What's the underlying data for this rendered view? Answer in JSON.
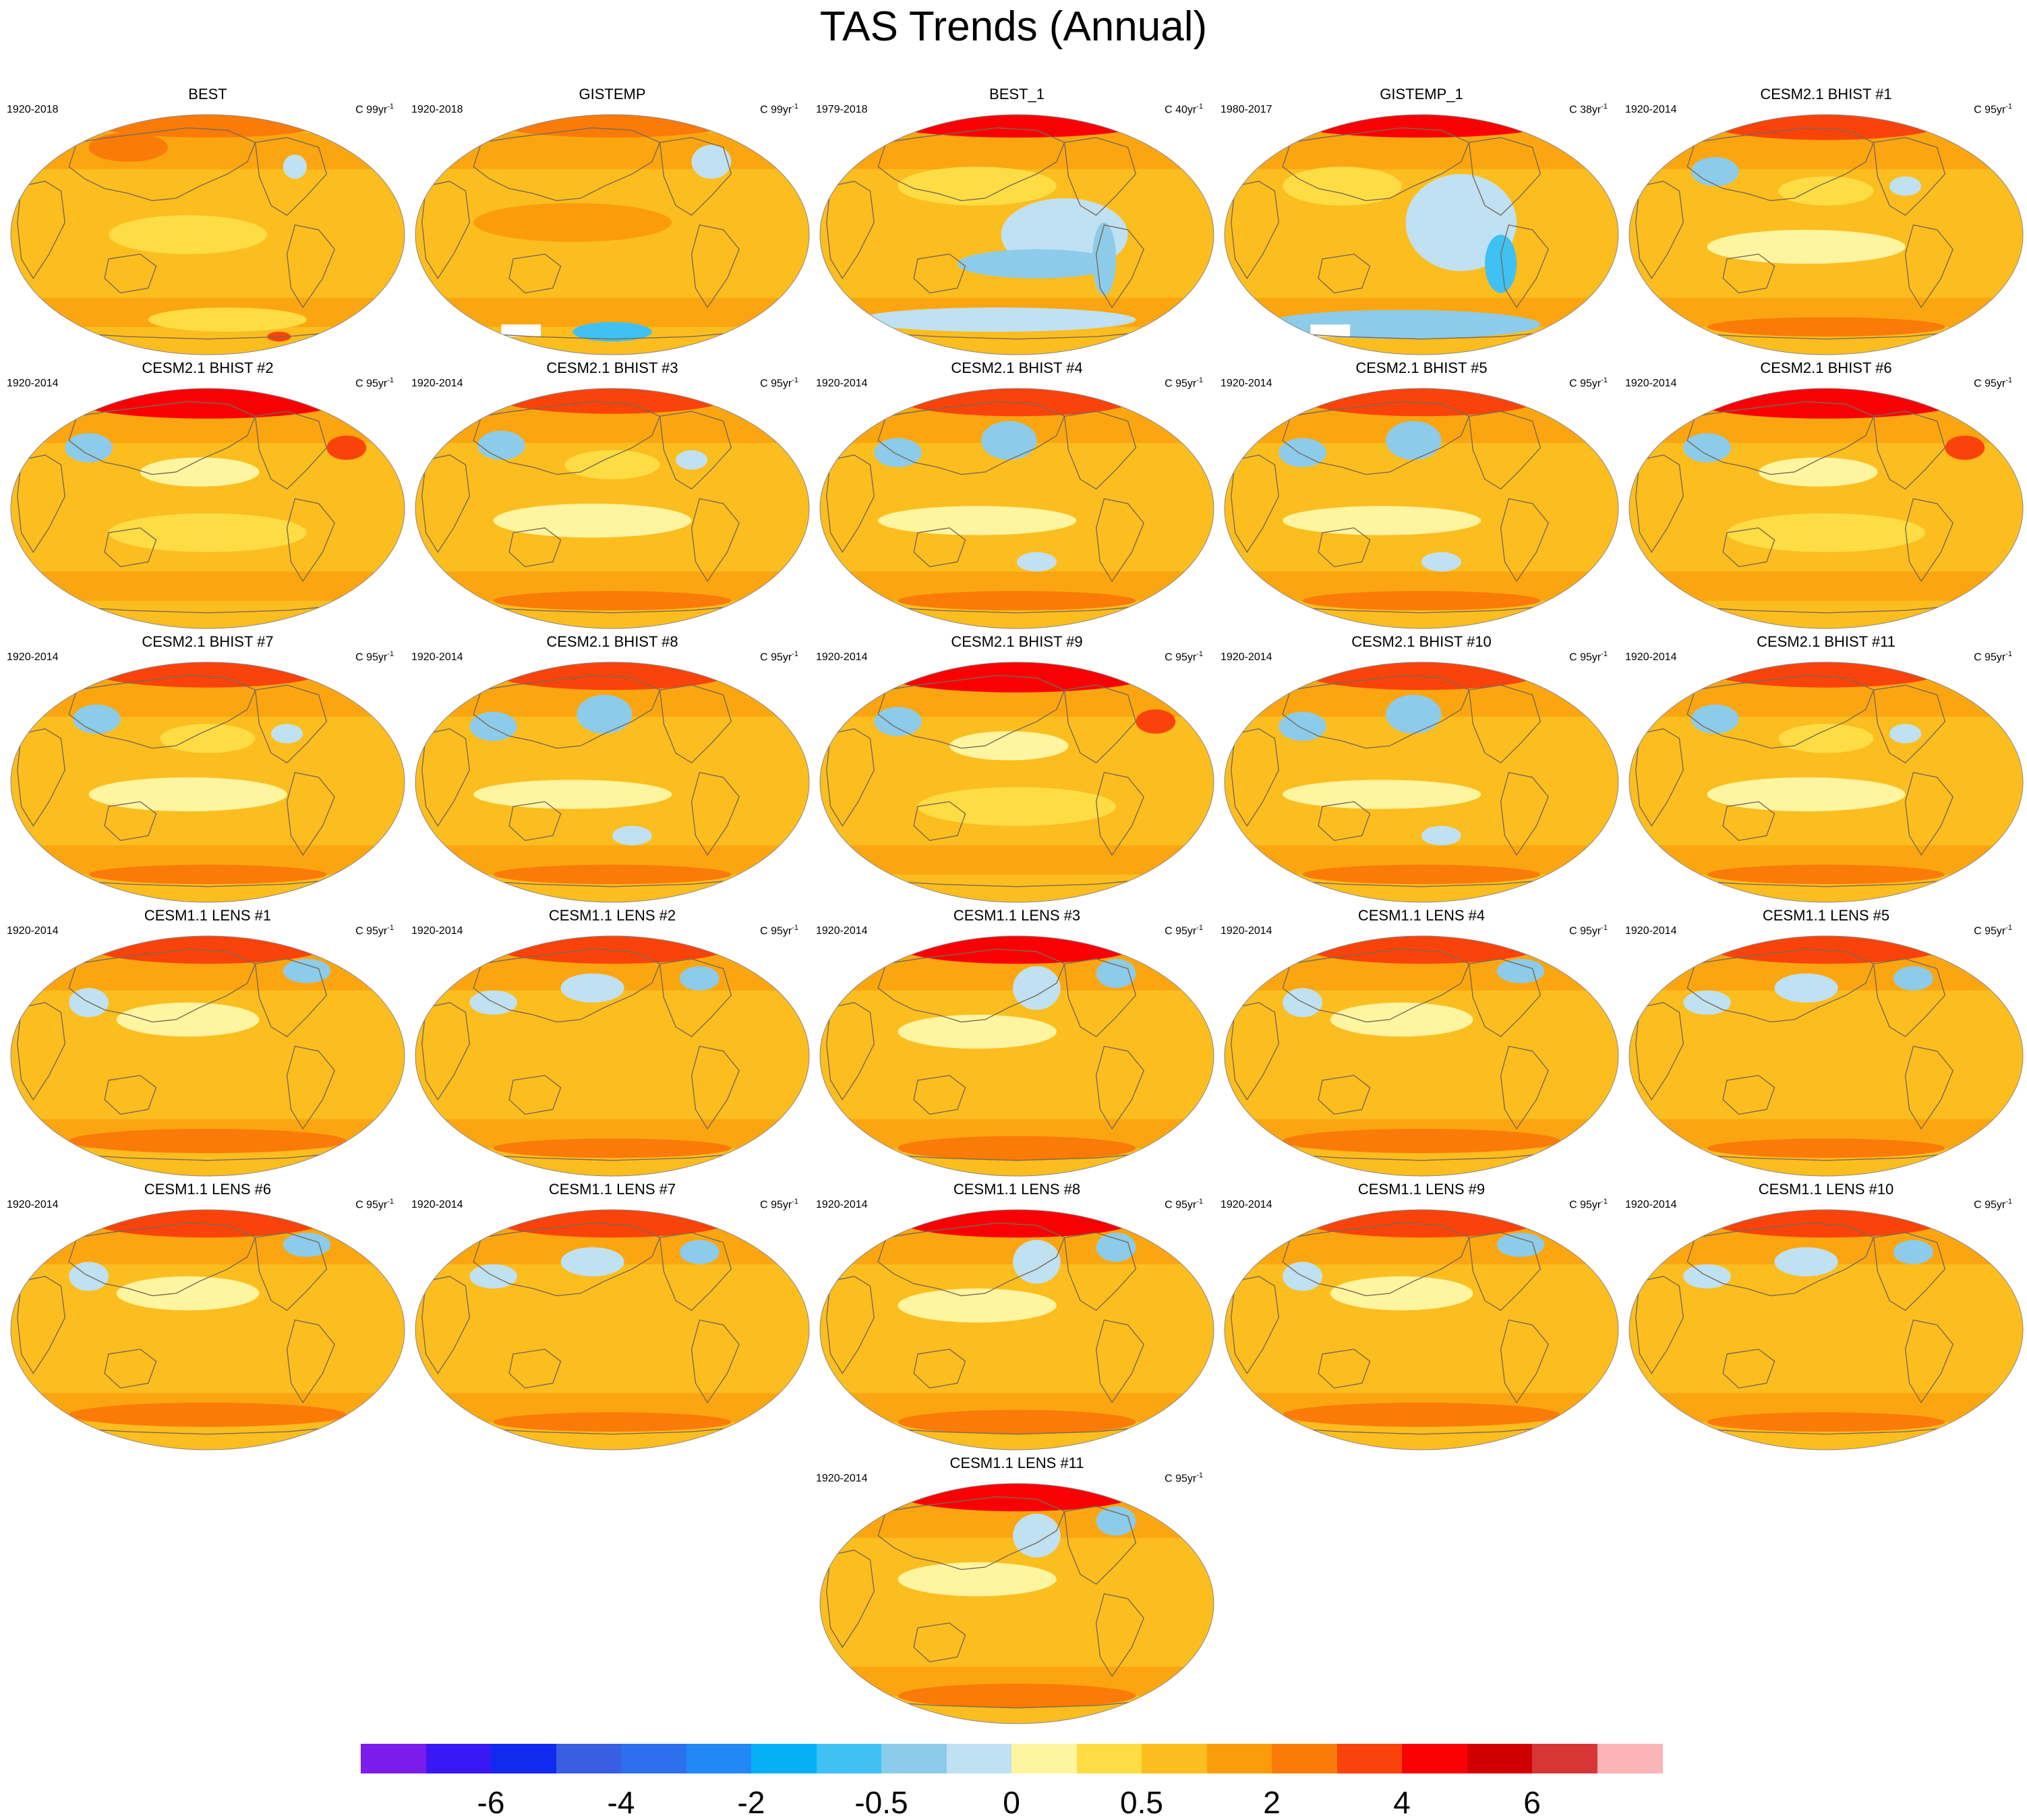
{
  "title": "TAS Trends (Annual)",
  "panels": [
    {
      "title": "BEST",
      "period": "1920-2018",
      "units": "C 99yr",
      "units_exp": "-1",
      "pattern": "obs_long",
      "flat": true
    },
    {
      "title": "GISTEMP",
      "period": "1920-2018",
      "units": "C 99yr",
      "units_exp": "-1",
      "pattern": "obs_long2",
      "flat": true
    },
    {
      "title": "BEST_1",
      "period": "1979-2018",
      "units": "C 40yr",
      "units_exp": "-1",
      "pattern": "obs_recent",
      "flat": false
    },
    {
      "title": "GISTEMP_1",
      "period": "1980-2017",
      "units": "C 38yr",
      "units_exp": "-1",
      "pattern": "obs_recent2",
      "flat": false
    },
    {
      "title": "CESM2.1 BHIST #1",
      "period": "1920-2014",
      "units": "C 95yr",
      "units_exp": "-1",
      "pattern": "model_a",
      "flat": false
    },
    {
      "title": "CESM2.1 BHIST #2",
      "period": "1920-2014",
      "units": "C 95yr",
      "units_exp": "-1",
      "pattern": "model_b",
      "flat": false
    },
    {
      "title": "CESM2.1 BHIST #3",
      "period": "1920-2014",
      "units": "C 95yr",
      "units_exp": "-1",
      "pattern": "model_a",
      "flat": false
    },
    {
      "title": "CESM2.1 BHIST #4",
      "period": "1920-2014",
      "units": "C 95yr",
      "units_exp": "-1",
      "pattern": "model_c",
      "flat": false
    },
    {
      "title": "CESM2.1 BHIST #5",
      "period": "1920-2014",
      "units": "C 95yr",
      "units_exp": "-1",
      "pattern": "model_c",
      "flat": false
    },
    {
      "title": "CESM2.1 BHIST #6",
      "period": "1920-2014",
      "units": "C 95yr",
      "units_exp": "-1",
      "pattern": "model_b",
      "flat": false
    },
    {
      "title": "CESM2.1 BHIST #7",
      "period": "1920-2014",
      "units": "C 95yr",
      "units_exp": "-1",
      "pattern": "model_a",
      "flat": false
    },
    {
      "title": "CESM2.1 BHIST #8",
      "period": "1920-2014",
      "units": "C 95yr",
      "units_exp": "-1",
      "pattern": "model_c",
      "flat": false
    },
    {
      "title": "CESM2.1 BHIST #9",
      "period": "1920-2014",
      "units": "C 95yr",
      "units_exp": "-1",
      "pattern": "model_b",
      "flat": false
    },
    {
      "title": "CESM2.1 BHIST #10",
      "period": "1920-2014",
      "units": "C 95yr",
      "units_exp": "-1",
      "pattern": "model_c",
      "flat": false
    },
    {
      "title": "CESM2.1 BHIST #11",
      "period": "1920-2014",
      "units": "C 95yr",
      "units_exp": "-1",
      "pattern": "model_a",
      "flat": false
    },
    {
      "title": "CESM1.1 LENS #1",
      "period": "1920-2014",
      "units": "C 95yr",
      "units_exp": "-1",
      "pattern": "lens_a",
      "flat": false
    },
    {
      "title": "CESM1.1 LENS #2",
      "period": "1920-2014",
      "units": "C 95yr",
      "units_exp": "-1",
      "pattern": "lens_b",
      "flat": false
    },
    {
      "title": "CESM1.1 LENS #3",
      "period": "1920-2014",
      "units": "C 95yr",
      "units_exp": "-1",
      "pattern": "lens_c",
      "flat": false
    },
    {
      "title": "CESM1.1 LENS #4",
      "period": "1920-2014",
      "units": "C 95yr",
      "units_exp": "-1",
      "pattern": "lens_a",
      "flat": false
    },
    {
      "title": "CESM1.1 LENS #5",
      "period": "1920-2014",
      "units": "C 95yr",
      "units_exp": "-1",
      "pattern": "lens_b",
      "flat": false
    },
    {
      "title": "CESM1.1 LENS #6",
      "period": "1920-2014",
      "units": "C 95yr",
      "units_exp": "-1",
      "pattern": "lens_a",
      "flat": false
    },
    {
      "title": "CESM1.1 LENS #7",
      "period": "1920-2014",
      "units": "C 95yr",
      "units_exp": "-1",
      "pattern": "lens_b",
      "flat": false
    },
    {
      "title": "CESM1.1 LENS #8",
      "period": "1920-2014",
      "units": "C 95yr",
      "units_exp": "-1",
      "pattern": "lens_c",
      "flat": false
    },
    {
      "title": "CESM1.1 LENS #9",
      "period": "1920-2014",
      "units": "C 95yr",
      "units_exp": "-1",
      "pattern": "lens_a",
      "flat": false
    },
    {
      "title": "CESM1.1 LENS #10",
      "period": "1920-2014",
      "units": "C 95yr",
      "units_exp": "-1",
      "pattern": "lens_b",
      "flat": false
    },
    {
      "title": "CESM1.1 LENS #11",
      "period": "1920-2014",
      "units": "C 95yr",
      "units_exp": "-1",
      "pattern": "lens_c",
      "flat": false
    }
  ],
  "colorbar": {
    "colors": [
      "#7b1ced",
      "#3a17f5",
      "#1429f0",
      "#3a5ee2",
      "#2e6fee",
      "#2188f5",
      "#05b0f6",
      "#3fc1f4",
      "#8ccbe9",
      "#bfe1f2",
      "#fff5a0",
      "#fddc44",
      "#fcbd1f",
      "#fb9d0a",
      "#fb7b08",
      "#fa430b",
      "#f90004",
      "#d00001",
      "#d83636",
      "#fbb5b7"
    ],
    "labels": [
      "-6",
      "-4",
      "-2",
      "-0.5",
      "0",
      "0.5",
      "2",
      "4",
      "6"
    ],
    "label_boundaries": [
      2,
      4,
      6,
      8,
      10,
      12,
      14,
      16,
      18
    ]
  },
  "palette": {
    "land_outline": "#7a6a55",
    "blob_light_blue": "#bfe1f2",
    "blob_blue": "#8ccbe9",
    "blob_dark_blue": "#3fc1f4",
    "yellow": "#fddc44",
    "pale_yellow": "#fff5a0",
    "gold": "#fcbd1f",
    "orange": "#fb9d0a",
    "dark_orange": "#fb7b08",
    "red": "#fa430b",
    "bright_red": "#f90004"
  }
}
